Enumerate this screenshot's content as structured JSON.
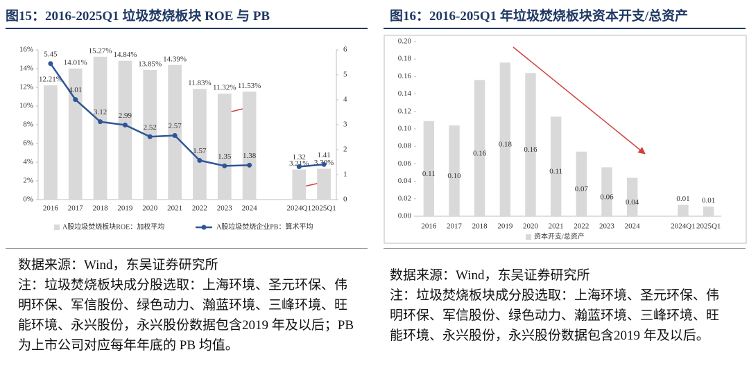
{
  "chart_data": [
    {
      "type": "combo",
      "title": "图15：2016-2025Q1 垃圾焚烧板块 ROE 与 PB",
      "categories": [
        "2016",
        "2017",
        "2018",
        "2019",
        "2020",
        "2021",
        "2022",
        "2023",
        "2024",
        null,
        "2024Q1",
        "2025Q1"
      ],
      "series": [
        {
          "name": "A股垃圾焚烧板块ROE：加权平均",
          "type": "bar",
          "color": "#d9d9d9",
          "values": [
            12.21,
            14.01,
            15.27,
            14.84,
            13.85,
            14.39,
            11.83,
            11.32,
            11.53,
            null,
            3.21,
            3.3
          ],
          "value_labels": [
            "12.21%",
            "14.01%",
            "15.27%",
            "14.84%",
            "13.85%",
            "14.39%",
            "11.83%",
            "11.32%",
            "11.53%",
            null,
            "3.21%",
            "3.30%"
          ]
        },
        {
          "name": "A股垃圾焚烧企业PB：算术平均",
          "type": "line",
          "axis": "y2",
          "color": "#2e5597",
          "values": [
            5.45,
            4.01,
            3.12,
            2.99,
            2.52,
            2.57,
            1.57,
            1.35,
            1.38,
            null,
            1.32,
            1.41
          ]
        }
      ],
      "ylim": [
        0,
        16
      ],
      "yticks": [
        {
          "value": 0,
          "label": "0%"
        },
        {
          "value": 2,
          "label": "2%"
        },
        {
          "value": 4,
          "label": "4%"
        },
        {
          "value": 6,
          "label": "6%"
        },
        {
          "value": 8,
          "label": "8%"
        },
        {
          "value": 10,
          "label": "10%"
        },
        {
          "value": 12,
          "label": "12%"
        },
        {
          "value": 14,
          "label": "14%"
        },
        {
          "value": 16,
          "label": "16%"
        }
      ],
      "y2lim": [
        0,
        6
      ],
      "y2ticks": [
        0,
        1,
        2,
        3,
        4,
        5,
        6
      ],
      "source": "数据来源：Wind，东吴证券研究所",
      "note": "注：垃圾焚烧板块成分股选取：上海环境、圣元环保、伟明环保、军信股份、绿色动力、瀚蓝环境、三峰环境、旺能环境、永兴股份，永兴股份数据包含2019 年及以后；PB 为上市公司对应每年年底的 PB 均值。"
    },
    {
      "type": "bar",
      "title": "图16：2016-205Q1 年垃圾焚烧板块资本开支/总资产",
      "categories": [
        "2016",
        "2017",
        "2018",
        "2019",
        "2020",
        "2021",
        "2022",
        "2023",
        "2024",
        null,
        "2024Q1",
        "2025Q1"
      ],
      "series": [
        {
          "name": "资本开支/总资产",
          "color": "#d9d9d9",
          "values": [
            0.109,
            0.104,
            0.156,
            0.176,
            0.164,
            0.114,
            0.074,
            0.056,
            0.044,
            null,
            0.013,
            0.011
          ],
          "value_labels": [
            "0.11",
            "0.10",
            "0.16",
            "0.18",
            "0.16",
            "0.11",
            "0.07",
            "0.06",
            "0.04",
            null,
            "0.01",
            "0.01"
          ]
        }
      ],
      "ylim": [
        0,
        0.2
      ],
      "yticks": [
        {
          "value": 0,
          "label": "0.00"
        },
        {
          "value": 0.02,
          "label": "0.02"
        },
        {
          "value": 0.04,
          "label": "0.04"
        },
        {
          "value": 0.06,
          "label": "0.06"
        },
        {
          "value": 0.08,
          "label": "0.08"
        },
        {
          "value": 0.1,
          "label": "0.10"
        },
        {
          "value": 0.12,
          "label": "0.12"
        },
        {
          "value": 0.14,
          "label": "0.14"
        },
        {
          "value": 0.16,
          "label": "0.16"
        },
        {
          "value": 0.18,
          "label": "0.18"
        },
        {
          "value": 0.2,
          "label": "0.20"
        }
      ],
      "source": "数据来源：Wind，东吴证券研究所",
      "note": "注：垃圾焚烧板块成分股选取：上海环境、圣元环保、伟明环保、军信股份、绿色动力、瀚蓝环境、三峰环境、旺能环境、永兴股份，永兴股份数据包含2019 年及以后。"
    }
  ]
}
